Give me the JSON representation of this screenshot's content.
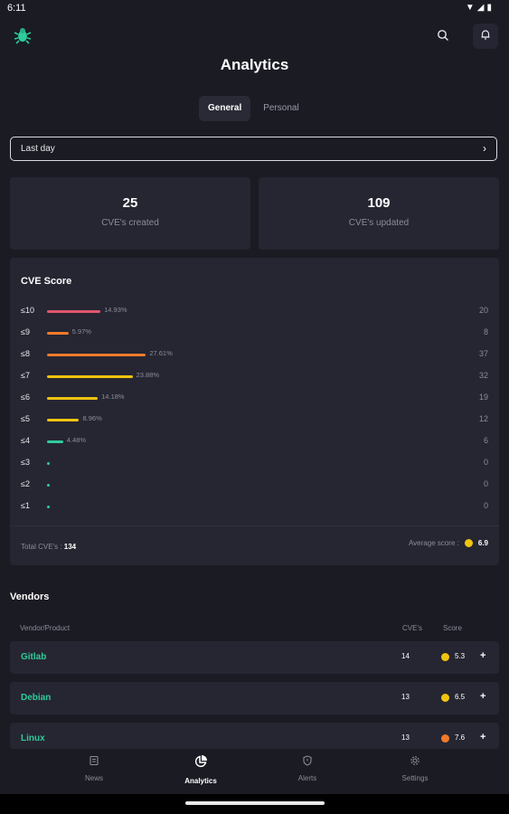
{
  "status_bar": {
    "time": "6:11",
    "icons": [
      "wifi-icon",
      "signal-icon",
      "battery-icon"
    ]
  },
  "app": {
    "title": "Analytics",
    "brand_icon": "bug-icon"
  },
  "tabs": [
    {
      "label": "General",
      "active": true
    },
    {
      "label": "Personal",
      "active": false
    }
  ],
  "time_range": {
    "label": "Last day"
  },
  "stats": [
    {
      "value": "25",
      "label": "CVE's created"
    },
    {
      "value": "109",
      "label": "CVE's updated"
    }
  ],
  "cve_score": {
    "title": "CVE Score",
    "rows": [
      {
        "label": "≤10",
        "percent_text": "14.93%",
        "percent": 14.93,
        "count": "20",
        "color": "#e0566f"
      },
      {
        "label": "≤9",
        "percent_text": "5.97%",
        "percent": 5.97,
        "count": "8",
        "color": "#f07a2a"
      },
      {
        "label": "≤8",
        "percent_text": "27.61%",
        "percent": 27.61,
        "count": "37",
        "color": "#f07a2a"
      },
      {
        "label": "≤7",
        "percent_text": "23.88%",
        "percent": 23.88,
        "count": "32",
        "color": "#f1c40f"
      },
      {
        "label": "≤6",
        "percent_text": "14.18%",
        "percent": 14.18,
        "count": "19",
        "color": "#f1c40f"
      },
      {
        "label": "≤5",
        "percent_text": "8.96%",
        "percent": 8.96,
        "count": "12",
        "color": "#f1c40f"
      },
      {
        "label": "≤4",
        "percent_text": "4.48%",
        "percent": 4.48,
        "count": "6",
        "color": "#2ecc9a"
      },
      {
        "label": "≤3",
        "percent_text": "",
        "percent": 0,
        "count": "0",
        "color": "#2ecc9a"
      },
      {
        "label": "≤2",
        "percent_text": "",
        "percent": 0,
        "count": "0",
        "color": "#2ecc9a"
      },
      {
        "label": "≤1",
        "percent_text": "",
        "percent": 0,
        "count": "0",
        "color": "#2ecc9a"
      }
    ],
    "total_label": "Total CVE's :",
    "total_value": "134",
    "average_label": "Average score :",
    "average_value": "6.9"
  },
  "vendors": {
    "title": "Vendors",
    "headers": {
      "vendor": "Vendor/Product",
      "cves": "CVE's",
      "score": "Score"
    },
    "rows": [
      {
        "name": "Gitlab",
        "cves": "14",
        "score": "5.3",
        "color": "#f1c40f"
      },
      {
        "name": "Debian",
        "cves": "13",
        "score": "6.5",
        "color": "#f1c40f"
      },
      {
        "name": "Linux",
        "cves": "13",
        "score": "7.6",
        "color": "#f07a2a"
      }
    ]
  },
  "bottom_nav": [
    {
      "label": "News",
      "icon": "newspaper-icon",
      "active": false
    },
    {
      "label": "Analytics",
      "icon": "pie-chart-icon",
      "active": true
    },
    {
      "label": "Alerts",
      "icon": "shield-icon",
      "active": false
    },
    {
      "label": "Settings",
      "icon": "gear-icon",
      "active": false
    }
  ]
}
